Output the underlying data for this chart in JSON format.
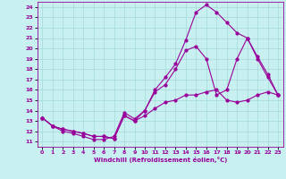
{
  "bg_color": "#c8f0f0",
  "line_color": "#990099",
  "grid_color": "#aadddd",
  "xlim": [
    -0.5,
    23.5
  ],
  "ylim": [
    10.5,
    24.5
  ],
  "xticks": [
    0,
    1,
    2,
    3,
    4,
    5,
    6,
    7,
    8,
    9,
    10,
    11,
    12,
    13,
    14,
    15,
    16,
    17,
    18,
    19,
    20,
    21,
    22,
    23
  ],
  "yticks": [
    11,
    12,
    13,
    14,
    15,
    16,
    17,
    18,
    19,
    20,
    21,
    22,
    23,
    24
  ],
  "xlabel": "Windchill (Refroidissement éolien,°C)",
  "line1_x": [
    0,
    1,
    2,
    3,
    4,
    5,
    6,
    7,
    8,
    9,
    10,
    11,
    12,
    13,
    14,
    15,
    16,
    17,
    18,
    19,
    20,
    21,
    22,
    23
  ],
  "line1_y": [
    13.3,
    12.5,
    12.2,
    12.0,
    11.8,
    11.5,
    11.5,
    11.3,
    13.5,
    13.0,
    14.0,
    16.0,
    17.2,
    18.5,
    20.8,
    23.5,
    24.2,
    23.5,
    22.5,
    21.5,
    21.0,
    19.0,
    17.2,
    15.5
  ],
  "line2_x": [
    0,
    1,
    2,
    3,
    4,
    5,
    6,
    7,
    8,
    9,
    10,
    11,
    12,
    13,
    14,
    15,
    16,
    17,
    18,
    19,
    20,
    21,
    22,
    23
  ],
  "line2_y": [
    13.3,
    12.5,
    12.0,
    11.8,
    11.5,
    11.2,
    11.2,
    11.5,
    13.8,
    13.2,
    14.0,
    15.8,
    16.5,
    18.0,
    19.8,
    20.2,
    19.0,
    15.5,
    16.0,
    19.0,
    21.0,
    19.2,
    17.5,
    15.5
  ],
  "line3_x": [
    0,
    1,
    2,
    3,
    4,
    5,
    6,
    7,
    8,
    9,
    10,
    11,
    12,
    13,
    14,
    15,
    16,
    17,
    18,
    19,
    20,
    21,
    22,
    23
  ],
  "line3_y": [
    13.3,
    12.5,
    12.2,
    12.0,
    11.8,
    11.5,
    11.5,
    11.3,
    13.5,
    13.0,
    13.5,
    14.2,
    14.8,
    15.0,
    15.5,
    15.5,
    15.8,
    16.0,
    15.0,
    14.8,
    15.0,
    15.5,
    15.8,
    15.5
  ]
}
